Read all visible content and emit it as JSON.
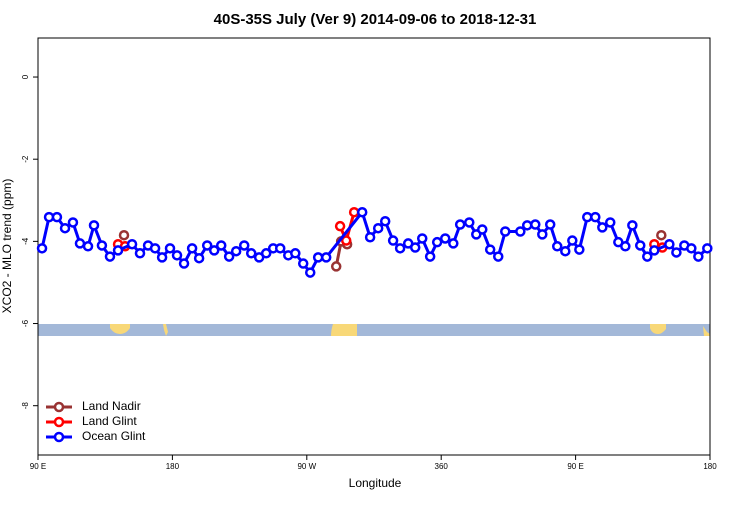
{
  "chart_data": {
    "type": "line",
    "title": "40S-35S July (Ver 9)   2014-09-06 to 2018-12-31",
    "x_label": "Longitude",
    "y_label": "XCO2 - MLO trend (ppm)",
    "xlim": [
      90,
      540
    ],
    "ylim": [
      -9.2,
      0.95
    ],
    "xticks": [
      {
        "value": 90,
        "label": "90 E"
      },
      180,
      {
        "value": 270,
        "label": "90 W"
      },
      360,
      {
        "value": 450,
        "label": "90 E"
      },
      {
        "value": 540,
        "label": "180"
      }
    ],
    "yticks": [
      -8,
      -6,
      -4,
      -2,
      0
    ],
    "legend": "bottom-left",
    "series": [
      {
        "name": "Land Nadir",
        "color": "#993333",
        "x": [
          147.6,
          null,
          289.7,
          293.0,
          297.0,
          null,
          507.4
        ],
        "values": [
          -3.85,
          null,
          -4.61,
          -4.0,
          -4.07,
          null,
          -3.85
        ]
      },
      {
        "name": "Land Glint",
        "color": "#ff0000",
        "x": [
          143.6,
          148.3,
          null,
          292.3,
          296.4,
          301.7,
          null,
          502.7,
          508.1
        ],
        "values": [
          -4.07,
          -4.12,
          null,
          -3.63,
          -3.98,
          -3.29,
          null,
          -4.07,
          -4.15
        ]
      },
      {
        "name": "Ocean Glint",
        "color": "#0000ff",
        "x": [
          92.7,
          97.4,
          102.7,
          108.1,
          113.4,
          118.1,
          123.5,
          127.5,
          132.8,
          138.2,
          143.6,
          153.0,
          158.3,
          163.7,
          168.4,
          173.1,
          178.4,
          183.1,
          187.8,
          193.2,
          197.9,
          203.3,
          208.0,
          212.7,
          218.0,
          222.7,
          228.1,
          232.8,
          238.1,
          242.8,
          247.5,
          252.2,
          257.6,
          262.3,
          267.6,
          272.3,
          277.6,
          283.0,
          307.1,
          312.4,
          317.8,
          322.5,
          327.8,
          332.5,
          337.9,
          342.6,
          347.3,
          352.6,
          357.3,
          362.7,
          368.1,
          372.7,
          378.8,
          383.5,
          387.5,
          392.8,
          398.2,
          402.9,
          413.0,
          417.6,
          423.0,
          427.7,
          433.0,
          437.7,
          443.1,
          447.8,
          452.5,
          457.8,
          463.2,
          467.9,
          473.2,
          478.6,
          483.3,
          488.0,
          493.3,
          498.0,
          502.7,
          512.8,
          517.5,
          522.8,
          527.5,
          532.2,
          538.2
        ],
        "values": [
          -4.17,
          -3.41,
          -3.41,
          -3.68,
          -3.54,
          -4.05,
          -4.12,
          -3.61,
          -4.1,
          -4.37,
          -4.22,
          -4.07,
          -4.29,
          -4.1,
          -4.17,
          -4.39,
          -4.17,
          -4.34,
          -4.54,
          -4.17,
          -4.41,
          -4.1,
          -4.22,
          -4.1,
          -4.37,
          -4.24,
          -4.1,
          -4.29,
          -4.39,
          -4.29,
          -4.17,
          -4.17,
          -4.34,
          -4.29,
          -4.54,
          -4.76,
          -4.39,
          -4.39,
          -3.29,
          -3.9,
          -3.68,
          -3.51,
          -3.98,
          -4.17,
          -4.05,
          -4.15,
          -3.93,
          -4.37,
          -4.02,
          -3.93,
          -4.05,
          -3.59,
          -3.54,
          -3.83,
          -3.71,
          -4.2,
          -4.37,
          -3.76,
          -3.76,
          -3.61,
          -3.59,
          -3.83,
          -3.59,
          -4.12,
          -4.24,
          -3.98,
          -4.2,
          -3.41,
          -3.41,
          -3.66,
          -3.54,
          -4.02,
          -4.12,
          -3.61,
          -4.1,
          -4.37,
          -4.22,
          -4.07,
          -4.27,
          -4.1,
          -4.17,
          -4.37,
          -4.17
        ]
      }
    ]
  }
}
